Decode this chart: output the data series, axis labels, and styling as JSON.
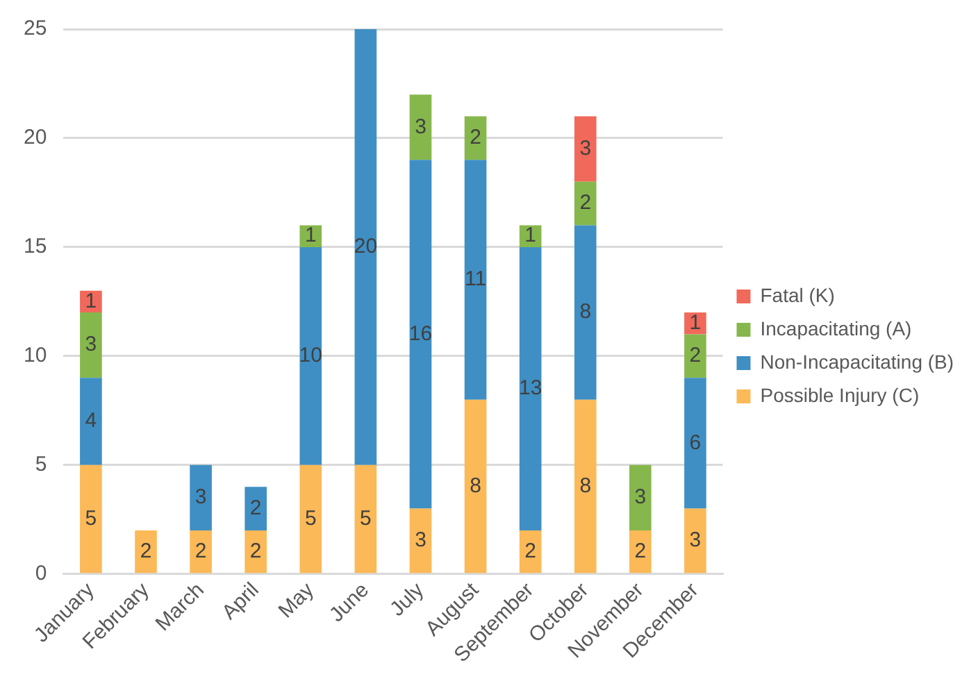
{
  "chart_data": {
    "type": "bar",
    "stacked": true,
    "categories": [
      "January",
      "February",
      "March",
      "April",
      "May",
      "June",
      "July",
      "August",
      "September",
      "October",
      "November",
      "December"
    ],
    "series": [
      {
        "name": "Possible Injury (C)",
        "color": "#fbb957",
        "values": [
          5,
          2,
          2,
          2,
          5,
          5,
          3,
          8,
          2,
          8,
          2,
          3
        ]
      },
      {
        "name": "Non-Incapacitating (B)",
        "color": "#3f8fc4",
        "values": [
          4,
          null,
          3,
          2,
          10,
          20,
          16,
          11,
          13,
          8,
          null,
          6
        ]
      },
      {
        "name": "Incapacitating (A)",
        "color": "#86b74c",
        "values": [
          3,
          null,
          null,
          null,
          1,
          null,
          3,
          2,
          1,
          2,
          3,
          2
        ]
      },
      {
        "name": "Fatal (K)",
        "color": "#f1695a",
        "values": [
          1,
          null,
          null,
          null,
          null,
          null,
          null,
          null,
          null,
          3,
          null,
          1
        ]
      }
    ],
    "ylim": [
      0,
      25
    ],
    "yticks": [
      0,
      5,
      10,
      15,
      20,
      25
    ],
    "grid": "y",
    "legend": "right",
    "data_labels": true
  }
}
